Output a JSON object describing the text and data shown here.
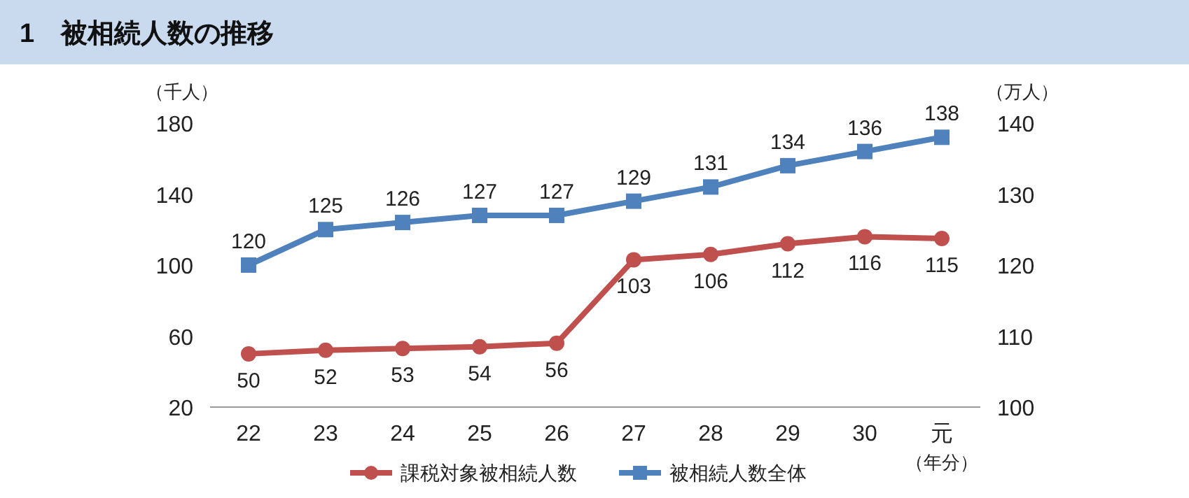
{
  "chart_data": {
    "type": "line",
    "title": "1　被相続人数の推移",
    "categories": [
      "22",
      "23",
      "24",
      "25",
      "26",
      "27",
      "28",
      "29",
      "30",
      "元"
    ],
    "series": [
      {
        "name": "課税対象被相続人数",
        "color": "#c0504d",
        "marker": "circle",
        "values": [
          50,
          52,
          53,
          54,
          56,
          103,
          106,
          112,
          116,
          115
        ]
      },
      {
        "name": "被相続人数全体",
        "color": "#4f81bd",
        "marker": "square",
        "axis": "y2",
        "values": [
          120,
          125,
          126,
          127,
          127,
          129,
          131,
          134,
          136,
          138
        ]
      }
    ],
    "ylabel": "（千人）",
    "y2label": "（万人）",
    "xlabel": "（年分）",
    "ylim": [
      20,
      180
    ],
    "yticks": [
      20,
      60,
      100,
      140,
      180
    ],
    "y2lim": [
      100,
      140
    ],
    "y2ticks": [
      100,
      110,
      120,
      130,
      140
    ],
    "data_labels": true,
    "legend": "bottom",
    "grid": false,
    "line_style": "solid"
  }
}
